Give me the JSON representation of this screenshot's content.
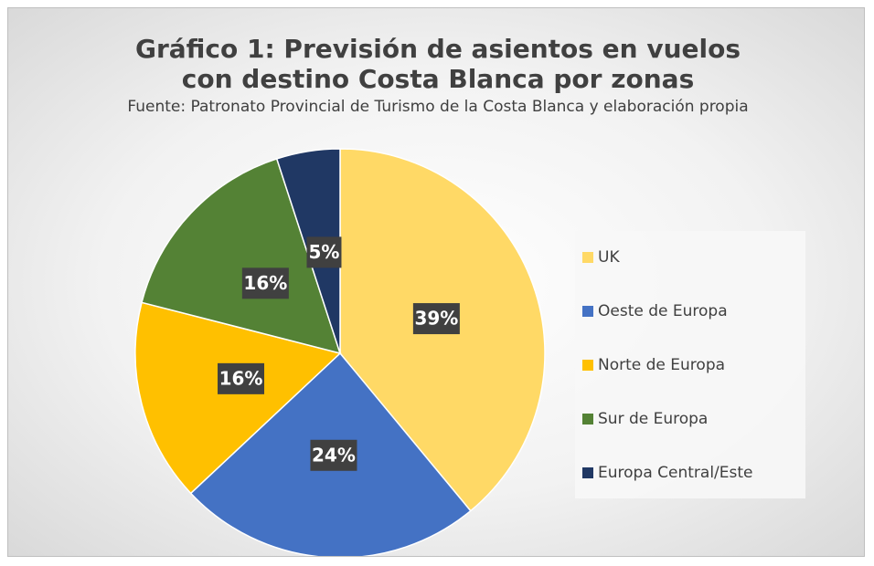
{
  "chart_data": {
    "type": "pie",
    "title": "Gráfico 1: Previsión de asientos en vuelos con destino Costa Blanca por zonas",
    "subtitle": "Fuente: Patronato Provincial de Turismo de la Costa Blanca y elaboración propia",
    "categories": [
      "UK",
      "Oeste de Europa",
      "Norte de Europa",
      "Sur de Europa",
      "Europa Central/Este"
    ],
    "values": [
      39,
      24,
      16,
      16,
      5
    ],
    "value_labels": [
      "39%",
      "24%",
      "16%",
      "16%",
      "5%"
    ],
    "colors": [
      "#FFD966",
      "#4472C4",
      "#FFC000",
      "#548235",
      "#203864"
    ],
    "legend": "right"
  }
}
